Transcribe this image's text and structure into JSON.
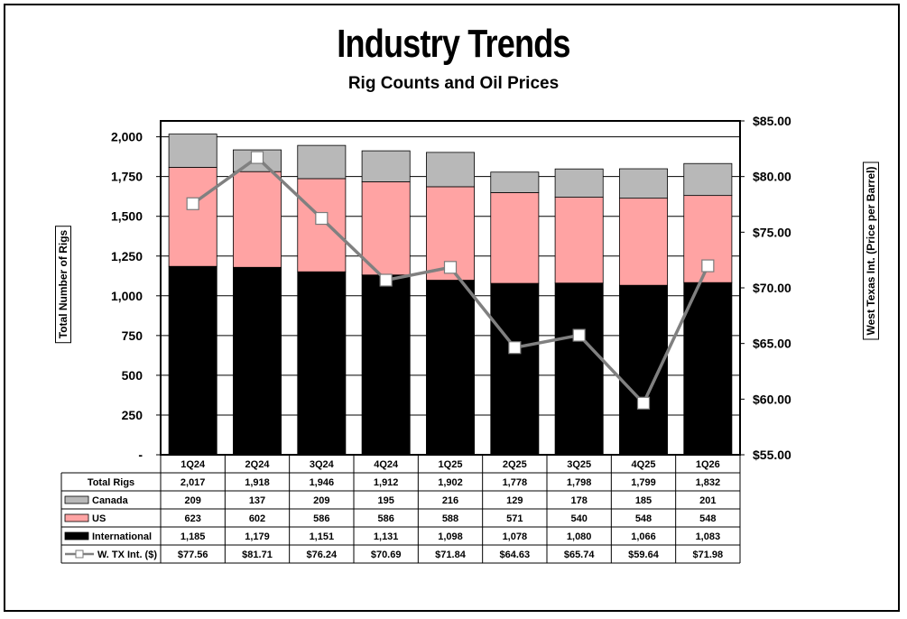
{
  "header": {
    "title": "Industry Trends",
    "subtitle": "Rig Counts and Oil Prices"
  },
  "chart_data": {
    "type": "bar",
    "stacked": true,
    "title": "Industry Trends",
    "subtitle": "Rig Counts and Oil Prices",
    "ylabel": "Total Number of Rigs",
    "y2label": "West Texas Int. (Price per Barrel)",
    "categories": [
      "1Q24",
      "2Q24",
      "3Q24",
      "4Q24",
      "1Q25",
      "2Q25",
      "3Q25",
      "4Q25",
      "1Q26"
    ],
    "ylim": [
      0,
      2100
    ],
    "y2lim": [
      55,
      85
    ],
    "yticks": [
      {
        "value": 0,
        "label": "-"
      },
      {
        "value": 250,
        "label": "250"
      },
      {
        "value": 500,
        "label": "500"
      },
      {
        "value": 750,
        "label": "750"
      },
      {
        "value": 1000,
        "label": "1,000"
      },
      {
        "value": 1250,
        "label": "1,250"
      },
      {
        "value": 1500,
        "label": "1,500"
      },
      {
        "value": 1750,
        "label": "1,750"
      },
      {
        "value": 2000,
        "label": "2,000"
      }
    ],
    "y2ticks": [
      {
        "value": 55,
        "label": "$55.00"
      },
      {
        "value": 60,
        "label": "$60.00"
      },
      {
        "value": 65,
        "label": "$65.00"
      },
      {
        "value": 70,
        "label": "$70.00"
      },
      {
        "value": 75,
        "label": "$75.00"
      },
      {
        "value": 80,
        "label": "$80.00"
      },
      {
        "value": 85,
        "label": "$85.00"
      }
    ],
    "grid": true,
    "series": [
      {
        "name": "International",
        "type": "bar",
        "axis": "left",
        "color": "#000000",
        "values": [
          1185,
          1179,
          1151,
          1131,
          1098,
          1078,
          1080,
          1066,
          1083
        ],
        "labels": [
          "1,185",
          "1,179",
          "1,151",
          "1,131",
          "1,098",
          "1,078",
          "1,080",
          "1,066",
          "1,083"
        ]
      },
      {
        "name": "US",
        "type": "bar",
        "axis": "left",
        "color": "#ffa3a3",
        "values": [
          623,
          602,
          586,
          586,
          588,
          571,
          540,
          548,
          548
        ],
        "labels": [
          "623",
          "602",
          "586",
          "586",
          "588",
          "571",
          "540",
          "548",
          "548"
        ]
      },
      {
        "name": "Canada",
        "type": "bar",
        "axis": "left",
        "color": "#b8b8b8",
        "values": [
          209,
          137,
          209,
          195,
          216,
          129,
          178,
          185,
          201
        ],
        "labels": [
          "209",
          "137",
          "209",
          "195",
          "216",
          "129",
          "178",
          "185",
          "201"
        ]
      },
      {
        "name": "W. TX Int. ($)",
        "type": "line",
        "axis": "right",
        "color": "#808080",
        "values": [
          77.56,
          81.71,
          76.24,
          70.69,
          71.84,
          64.63,
          65.74,
          59.64,
          71.98
        ],
        "labels": [
          "$77.56",
          "$81.71",
          "$76.24",
          "$70.69",
          "$71.84",
          "$64.63",
          "$65.74",
          "$59.64",
          "$71.98"
        ]
      }
    ],
    "table": {
      "total_label": "Total Rigs",
      "totals": [
        "2,017",
        "1,918",
        "1,946",
        "1,912",
        "1,902",
        "1,778",
        "1,798",
        "1,799",
        "1,832"
      ],
      "row_order": [
        "Canada",
        "US",
        "International",
        "W. TX Int. ($)"
      ]
    }
  }
}
